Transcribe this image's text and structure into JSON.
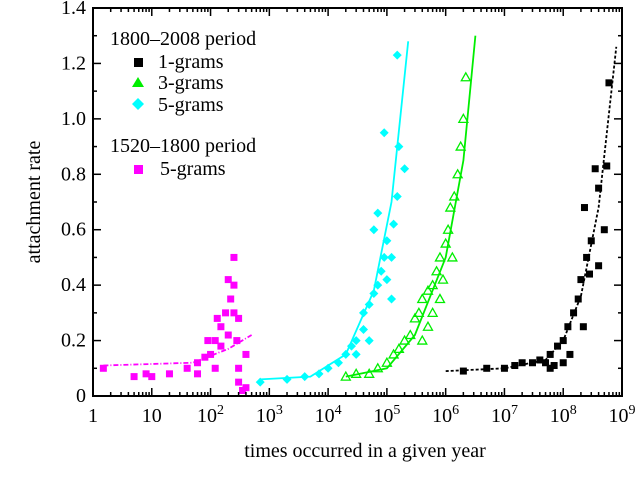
{
  "chart_data": {
    "type": "scatter",
    "title": "",
    "xlabel": "times occurred in a given year",
    "ylabel": "attachment rate",
    "xscale": "log",
    "xlim": [
      1,
      1000000000
    ],
    "ylim": [
      0,
      1.4
    ],
    "grid": false,
    "legend_placement": "top-left",
    "x_tick_labels": [
      {
        "base": "1",
        "exp": ""
      },
      {
        "base": "10",
        "exp": ""
      },
      {
        "base": "10",
        "exp": "2"
      },
      {
        "base": "10",
        "exp": "3"
      },
      {
        "base": "10",
        "exp": "4"
      },
      {
        "base": "10",
        "exp": "5"
      },
      {
        "base": "10",
        "exp": "6"
      },
      {
        "base": "10",
        "exp": "7"
      },
      {
        "base": "10",
        "exp": "8"
      },
      {
        "base": "10",
        "exp": "9"
      }
    ],
    "y_ticks": [
      0,
      0.2,
      0.4,
      0.6,
      0.8,
      1.0,
      1.2,
      1.4
    ],
    "y_tick_labels": [
      "0",
      "0.2",
      "0.4",
      "0.6",
      "0.8",
      "1.0",
      "1.2",
      "1.4"
    ],
    "legend": {
      "group1_title": "1800–2008 period",
      "group2_title": "1520–1800 period"
    },
    "series": [
      {
        "name": "1-grams",
        "group": "1800-2008",
        "marker": "square",
        "color": "#000000",
        "line_style": "dotted",
        "fit": [
          [
            1000000,
            0.09
          ],
          [
            10000000,
            0.1
          ],
          [
            50000000,
            0.13
          ],
          [
            100000000,
            0.2
          ],
          [
            200000000,
            0.36
          ],
          [
            400000000,
            0.68
          ],
          [
            800000000,
            1.26
          ]
        ],
        "points": [
          [
            2000000,
            0.09
          ],
          [
            5000000,
            0.1
          ],
          [
            10000000,
            0.1
          ],
          [
            15000000,
            0.11
          ],
          [
            20000000,
            0.12
          ],
          [
            30000000,
            0.12
          ],
          [
            40000000,
            0.13
          ],
          [
            50000000,
            0.12
          ],
          [
            60000000,
            0.15
          ],
          [
            70000000,
            0.11
          ],
          [
            80000000,
            0.18
          ],
          [
            100000000,
            0.2
          ],
          [
            120000000,
            0.25
          ],
          [
            150000000,
            0.3
          ],
          [
            130000000,
            0.15
          ],
          [
            180000000,
            0.35
          ],
          [
            200000000,
            0.42
          ],
          [
            220000000,
            0.25
          ],
          [
            250000000,
            0.5
          ],
          [
            280000000,
            0.44
          ],
          [
            300000000,
            0.56
          ],
          [
            230000000,
            0.68
          ],
          [
            350000000,
            0.82
          ],
          [
            400000000,
            0.47
          ],
          [
            500000000,
            0.6
          ],
          [
            550000000,
            0.83
          ],
          [
            600000000,
            1.13
          ],
          [
            100000000,
            0.12
          ],
          [
            60000000,
            0.1
          ],
          [
            400000000,
            0.75
          ]
        ]
      },
      {
        "name": "3-grams",
        "group": "1800-2008",
        "marker": "triangle",
        "color": "#00ee00",
        "line_style": "solid",
        "fit": [
          [
            20000,
            0.07
          ],
          [
            100000,
            0.1
          ],
          [
            300000,
            0.22
          ],
          [
            1000000,
            0.5
          ],
          [
            2000000,
            0.85
          ],
          [
            3200000,
            1.3
          ]
        ],
        "points": [
          [
            20000,
            0.07
          ],
          [
            30000,
            0.08
          ],
          [
            50000,
            0.08
          ],
          [
            70000,
            0.1
          ],
          [
            100000,
            0.12
          ],
          [
            130000,
            0.15
          ],
          [
            160000,
            0.17
          ],
          [
            200000,
            0.2
          ],
          [
            250000,
            0.22
          ],
          [
            300000,
            0.28
          ],
          [
            350000,
            0.3
          ],
          [
            400000,
            0.35
          ],
          [
            500000,
            0.38
          ],
          [
            500000,
            0.25
          ],
          [
            600000,
            0.4
          ],
          [
            700000,
            0.45
          ],
          [
            800000,
            0.5
          ],
          [
            900000,
            0.42
          ],
          [
            1000000,
            0.55
          ],
          [
            1100000,
            0.6
          ],
          [
            1200000,
            0.68
          ],
          [
            1400000,
            0.72
          ],
          [
            1600000,
            0.8
          ],
          [
            1300000,
            0.5
          ],
          [
            1800000,
            0.9
          ],
          [
            2000000,
            1.0
          ],
          [
            2200000,
            1.15
          ],
          [
            600000,
            0.3
          ],
          [
            400000,
            0.2
          ],
          [
            800000,
            0.35
          ]
        ]
      },
      {
        "name": "5-grams",
        "group": "1800-2008",
        "marker": "diamond",
        "color": "#00ffff",
        "line_style": "solid",
        "fit": [
          [
            700,
            0.06
          ],
          [
            5000,
            0.07
          ],
          [
            20000,
            0.15
          ],
          [
            60000,
            0.38
          ],
          [
            120000,
            0.7
          ],
          [
            230000,
            1.28
          ]
        ],
        "points": [
          [
            700,
            0.05
          ],
          [
            2000,
            0.06
          ],
          [
            4000,
            0.07
          ],
          [
            7000,
            0.08
          ],
          [
            10000,
            0.1
          ],
          [
            15000,
            0.12
          ],
          [
            20000,
            0.15
          ],
          [
            25000,
            0.18
          ],
          [
            30000,
            0.2
          ],
          [
            40000,
            0.24
          ],
          [
            40000,
            0.3
          ],
          [
            50000,
            0.33
          ],
          [
            60000,
            0.37
          ],
          [
            70000,
            0.4
          ],
          [
            80000,
            0.45
          ],
          [
            90000,
            0.5
          ],
          [
            60000,
            0.6
          ],
          [
            70000,
            0.66
          ],
          [
            100000,
            0.56
          ],
          [
            100000,
            0.42
          ],
          [
            120000,
            0.5
          ],
          [
            130000,
            0.62
          ],
          [
            150000,
            0.72
          ],
          [
            160000,
            0.9
          ],
          [
            150000,
            1.23
          ],
          [
            120000,
            0.35
          ],
          [
            50000,
            0.2
          ],
          [
            90000,
            0.95
          ],
          [
            200000,
            0.82
          ],
          [
            30000,
            0.15
          ]
        ]
      },
      {
        "name": "5-grams",
        "group": "1520-1800",
        "marker": "square",
        "color": "#ff00ff",
        "line_style": "dashdot",
        "fit": [
          [
            1.5,
            0.11
          ],
          [
            50,
            0.12
          ],
          [
            200,
            0.17
          ],
          [
            500,
            0.22
          ]
        ],
        "points": [
          [
            1.5,
            0.1
          ],
          [
            5,
            0.07
          ],
          [
            8,
            0.08
          ],
          [
            10,
            0.07
          ],
          [
            20,
            0.08
          ],
          [
            40,
            0.1
          ],
          [
            60,
            0.12
          ],
          [
            80,
            0.14
          ],
          [
            100,
            0.15
          ],
          [
            120,
            0.2
          ],
          [
            150,
            0.25
          ],
          [
            180,
            0.3
          ],
          [
            200,
            0.22
          ],
          [
            220,
            0.35
          ],
          [
            250,
            0.4
          ],
          [
            250,
            0.5
          ],
          [
            280,
            0.2
          ],
          [
            300,
            0.1
          ],
          [
            300,
            0.05
          ],
          [
            350,
            0.02
          ],
          [
            400,
            0.03
          ],
          [
            150,
            0.18
          ],
          [
            200,
            0.42
          ],
          [
            120,
            0.1
          ],
          [
            90,
            0.2
          ],
          [
            250,
            0.3
          ],
          [
            300,
            0.28
          ],
          [
            130,
            0.28
          ],
          [
            400,
            0.15
          ],
          [
            60,
            0.08
          ]
        ]
      }
    ]
  }
}
